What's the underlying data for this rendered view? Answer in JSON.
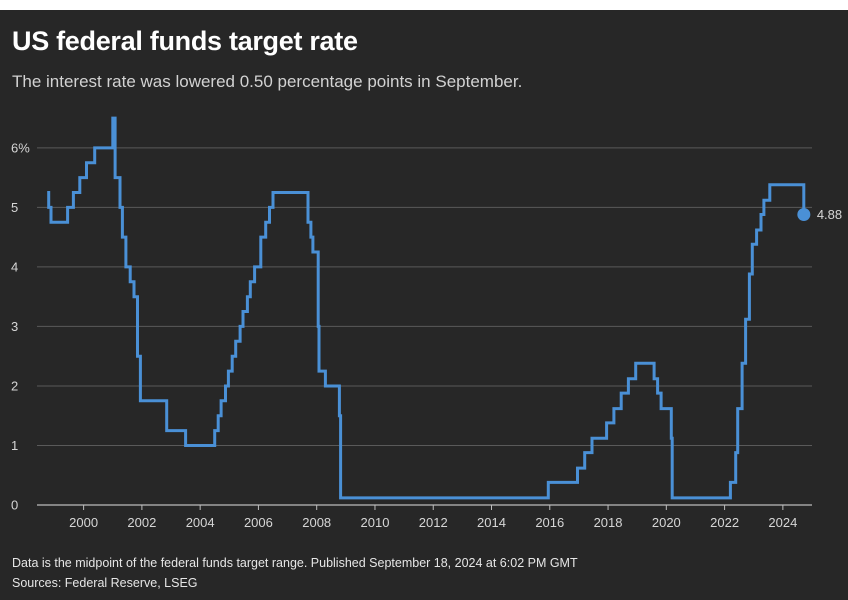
{
  "header": {
    "title": "US federal funds target rate",
    "subtitle": "The interest rate was lowered 0.50 percentage points in September."
  },
  "footer": {
    "note": "Data is the midpoint of the federal funds target range. Published September 18, 2024 at 6:02 PM GMT",
    "sources": "Sources: Federal Reserve, LSEG"
  },
  "colors": {
    "background": "#272727",
    "line": "#4a90d6",
    "grid": "#5a5a5a"
  },
  "chart_data": {
    "type": "line",
    "title": "US federal funds target rate",
    "subtitle": "The interest rate was lowered 0.50 percentage points in September.",
    "xlabel": "",
    "ylabel": "",
    "xlim": [
      1998.4,
      2025.0
    ],
    "ylim": [
      0,
      6.3
    ],
    "grid": true,
    "legend": "none",
    "x_ticks": [
      2000,
      2002,
      2004,
      2006,
      2008,
      2010,
      2012,
      2014,
      2016,
      2018,
      2020,
      2022,
      2024
    ],
    "x_tick_labels": [
      "2000",
      "2002",
      "2004",
      "2006",
      "2008",
      "2010",
      "2012",
      "2014",
      "2016",
      "2018",
      "2020",
      "2022",
      "2024"
    ],
    "y_ticks": [
      0,
      1,
      2,
      3,
      4,
      5,
      6
    ],
    "y_tick_labels": [
      "0",
      "1",
      "2",
      "3",
      "4",
      "5",
      "6%"
    ],
    "end_label": "4.88",
    "series": [
      {
        "step": true,
        "x": [
          1998.75,
          1998.8,
          1998.88,
          1999.45,
          1999.65,
          1999.87,
          2000.1,
          2000.38,
          2001.0,
          2001.08,
          2001.25,
          2001.33,
          2001.45,
          2001.6,
          2001.73,
          2001.85,
          2001.95,
          2002.85,
          2003.5,
          2004.5,
          2004.62,
          2004.72,
          2004.87,
          2004.97,
          2005.1,
          2005.22,
          2005.37,
          2005.47,
          2005.62,
          2005.72,
          2005.87,
          2006.08,
          2006.25,
          2006.38,
          2006.5,
          2007.7,
          2007.8,
          2007.87,
          2008.05,
          2008.08,
          2008.3,
          2008.78,
          2008.82,
          2015.95,
          2016.95,
          2017.2,
          2017.45,
          2017.95,
          2018.2,
          2018.45,
          2018.7,
          2018.95,
          2019.58,
          2019.7,
          2019.82,
          2020.17,
          2020.2,
          2022.2,
          2022.38,
          2022.45,
          2022.6,
          2022.72,
          2022.85,
          2022.95,
          2023.1,
          2023.25,
          2023.35,
          2023.55,
          2024.72
        ],
        "y": [
          5.25,
          5.0,
          4.75,
          5.0,
          5.25,
          5.5,
          5.75,
          6.0,
          6.5,
          5.5,
          5.0,
          4.5,
          4.0,
          3.75,
          3.5,
          2.5,
          1.75,
          1.25,
          1.0,
          1.25,
          1.5,
          1.75,
          2.0,
          2.25,
          2.5,
          2.75,
          3.0,
          3.25,
          3.5,
          3.75,
          4.0,
          4.5,
          4.75,
          5.0,
          5.25,
          4.75,
          4.5,
          4.25,
          3.0,
          2.25,
          2.0,
          1.5,
          0.12,
          0.38,
          0.62,
          0.88,
          1.12,
          1.38,
          1.62,
          1.88,
          2.12,
          2.38,
          2.12,
          1.88,
          1.62,
          1.12,
          0.12,
          0.38,
          0.88,
          1.62,
          2.38,
          3.12,
          3.88,
          4.38,
          4.62,
          4.88,
          5.12,
          5.38,
          4.88
        ]
      }
    ]
  }
}
